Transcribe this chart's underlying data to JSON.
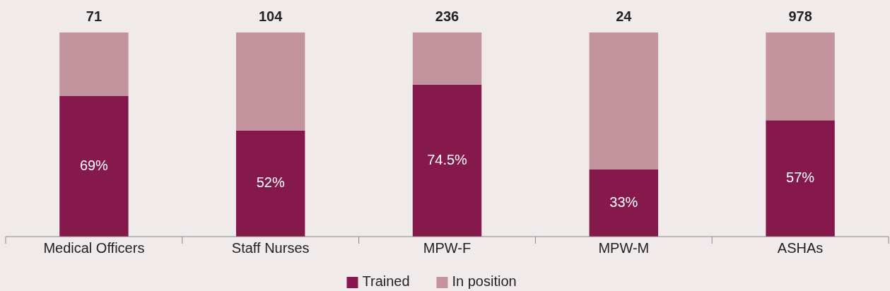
{
  "chart_data": {
    "type": "bar",
    "stacked": true,
    "categories": [
      "Medical Officers",
      "Staff Nurses",
      "MPW-F",
      "MPW-M",
      "ASHAs"
    ],
    "series": [
      {
        "name": "Trained",
        "color": "#85194b",
        "values": [
          69,
          52,
          74.5,
          33,
          57
        ],
        "value_labels": [
          "69%",
          "52%",
          "74.5%",
          "33%",
          "57%"
        ]
      },
      {
        "name": "In position",
        "color": "#c3949d",
        "values": [
          31,
          48,
          25.5,
          67,
          43
        ]
      }
    ],
    "annotations": [
      {
        "text": "71",
        "x": "Medical Officers",
        "y": 100
      },
      {
        "text": "104",
        "x": "Staff Nurses",
        "y": 100
      },
      {
        "text": "236",
        "x": "MPW-F",
        "y": 100
      },
      {
        "text": "24",
        "x": "MPW-M",
        "y": 100
      },
      {
        "text": "978",
        "x": "ASHAs",
        "y": 100
      }
    ],
    "legend": "bottom"
  }
}
